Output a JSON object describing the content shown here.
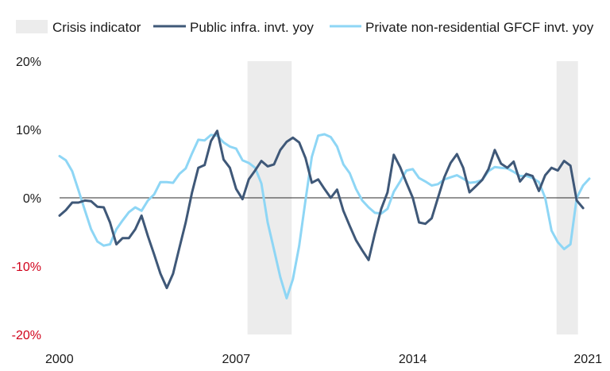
{
  "chart_data": {
    "type": "line",
    "legend_position": "top",
    "legend": [
      {
        "name": "Crisis indicator",
        "kind": "band",
        "color": "#ececec"
      },
      {
        "name": "Public infra. invt. yoy",
        "kind": "line",
        "color": "#3f5878"
      },
      {
        "name": "Private non-residential GFCF invt. yoy",
        "kind": "line",
        "color": "#8ed6f5"
      }
    ],
    "xlim": [
      2000,
      2021
    ],
    "ylim": [
      -20,
      20
    ],
    "x_ticks": [
      {
        "value": 2000,
        "label": "2000"
      },
      {
        "value": 2007,
        "label": "2007"
      },
      {
        "value": 2014,
        "label": "2014"
      },
      {
        "value": 2021,
        "label": "2021"
      }
    ],
    "y_ticks": [
      {
        "value": 20,
        "label": "20%",
        "color": "#1a1a1a"
      },
      {
        "value": 10,
        "label": "10%",
        "color": "#1a1a1a"
      },
      {
        "value": 0,
        "label": "0%",
        "color": "#1a1a1a"
      },
      {
        "value": -10,
        "label": "-10%",
        "color": "#d0021b"
      },
      {
        "value": -20,
        "label": "-20%",
        "color": "#d0021b"
      }
    ],
    "zero_line": true,
    "grid": false,
    "crisis_bands": [
      {
        "start": 2007.45,
        "end": 2009.2
      },
      {
        "start": 2019.7,
        "end": 2020.55
      }
    ],
    "series": [
      {
        "name": "Public infra. invt. yoy",
        "color": "#3f5878",
        "points": [
          [
            2000.0,
            -2.6
          ],
          [
            2000.25,
            -1.8
          ],
          [
            2000.5,
            -0.7
          ],
          [
            2000.75,
            -0.7
          ],
          [
            2001.0,
            -0.4
          ],
          [
            2001.25,
            -0.5
          ],
          [
            2001.5,
            -1.3
          ],
          [
            2001.75,
            -1.4
          ],
          [
            2002.0,
            -3.6
          ],
          [
            2002.25,
            -6.8
          ],
          [
            2002.5,
            -5.9
          ],
          [
            2002.75,
            -5.9
          ],
          [
            2003.0,
            -4.6
          ],
          [
            2003.25,
            -2.6
          ],
          [
            2003.5,
            -5.6
          ],
          [
            2003.75,
            -8.3
          ],
          [
            2004.0,
            -11.1
          ],
          [
            2004.25,
            -13.2
          ],
          [
            2004.5,
            -11.1
          ],
          [
            2004.75,
            -7.3
          ],
          [
            2005.0,
            -3.6
          ],
          [
            2005.25,
            0.8
          ],
          [
            2005.5,
            4.4
          ],
          [
            2005.75,
            4.8
          ],
          [
            2006.0,
            8.3
          ],
          [
            2006.25,
            9.8
          ],
          [
            2006.5,
            5.6
          ],
          [
            2006.75,
            4.4
          ],
          [
            2007.0,
            1.3
          ],
          [
            2007.25,
            -0.2
          ],
          [
            2007.5,
            2.7
          ],
          [
            2007.75,
            4.0
          ],
          [
            2008.0,
            5.4
          ],
          [
            2008.25,
            4.6
          ],
          [
            2008.5,
            4.9
          ],
          [
            2008.75,
            7.0
          ],
          [
            2009.0,
            8.2
          ],
          [
            2009.25,
            8.8
          ],
          [
            2009.5,
            8.1
          ],
          [
            2009.75,
            5.8
          ],
          [
            2010.0,
            2.2
          ],
          [
            2010.25,
            2.7
          ],
          [
            2010.5,
            1.3
          ],
          [
            2010.75,
            0.0
          ],
          [
            2011.0,
            1.2
          ],
          [
            2011.25,
            -1.9
          ],
          [
            2011.5,
            -4.1
          ],
          [
            2011.75,
            -6.2
          ],
          [
            2012.0,
            -7.7
          ],
          [
            2012.25,
            -9.1
          ],
          [
            2012.5,
            -5.2
          ],
          [
            2012.75,
            -1.6
          ],
          [
            2013.0,
            0.8
          ],
          [
            2013.25,
            6.3
          ],
          [
            2013.5,
            4.5
          ],
          [
            2013.75,
            2.2
          ],
          [
            2014.0,
            0.0
          ],
          [
            2014.25,
            -3.6
          ],
          [
            2014.5,
            -3.8
          ],
          [
            2014.75,
            -3.0
          ],
          [
            2015.0,
            0.0
          ],
          [
            2015.25,
            3.0
          ],
          [
            2015.5,
            5.1
          ],
          [
            2015.75,
            6.4
          ],
          [
            2016.0,
            4.4
          ],
          [
            2016.25,
            0.8
          ],
          [
            2016.5,
            1.7
          ],
          [
            2016.75,
            2.6
          ],
          [
            2017.0,
            4.2
          ],
          [
            2017.25,
            7.0
          ],
          [
            2017.5,
            5.0
          ],
          [
            2017.75,
            4.4
          ],
          [
            2018.0,
            5.3
          ],
          [
            2018.25,
            2.4
          ],
          [
            2018.5,
            3.5
          ],
          [
            2018.75,
            3.2
          ],
          [
            2019.0,
            1.0
          ],
          [
            2019.25,
            3.3
          ],
          [
            2019.5,
            4.4
          ],
          [
            2019.75,
            4.0
          ],
          [
            2020.0,
            5.4
          ],
          [
            2020.25,
            4.7
          ],
          [
            2020.5,
            -0.4
          ],
          [
            2020.75,
            -1.5
          ]
        ]
      },
      {
        "name": "Private non-residential GFCF invt. yoy",
        "color": "#8ed6f5",
        "points": [
          [
            2000.0,
            6.1
          ],
          [
            2000.25,
            5.5
          ],
          [
            2000.5,
            3.9
          ],
          [
            2000.75,
            1.1
          ],
          [
            2001.0,
            -1.8
          ],
          [
            2001.25,
            -4.6
          ],
          [
            2001.5,
            -6.4
          ],
          [
            2001.75,
            -7.0
          ],
          [
            2002.0,
            -6.8
          ],
          [
            2002.25,
            -4.6
          ],
          [
            2002.5,
            -3.3
          ],
          [
            2002.75,
            -2.1
          ],
          [
            2003.0,
            -1.4
          ],
          [
            2003.25,
            -1.9
          ],
          [
            2003.5,
            -0.4
          ],
          [
            2003.75,
            0.5
          ],
          [
            2004.0,
            2.3
          ],
          [
            2004.25,
            2.3
          ],
          [
            2004.5,
            2.2
          ],
          [
            2004.75,
            3.5
          ],
          [
            2005.0,
            4.3
          ],
          [
            2005.25,
            6.5
          ],
          [
            2005.5,
            8.5
          ],
          [
            2005.75,
            8.4
          ],
          [
            2006.0,
            9.2
          ],
          [
            2006.25,
            9.1
          ],
          [
            2006.5,
            8.1
          ],
          [
            2006.75,
            7.5
          ],
          [
            2007.0,
            7.2
          ],
          [
            2007.25,
            5.5
          ],
          [
            2007.5,
            5.1
          ],
          [
            2007.75,
            4.4
          ],
          [
            2008.0,
            2.1
          ],
          [
            2008.25,
            -3.6
          ],
          [
            2008.5,
            -7.6
          ],
          [
            2008.75,
            -11.6
          ],
          [
            2009.0,
            -14.7
          ],
          [
            2009.25,
            -11.9
          ],
          [
            2009.5,
            -7.0
          ],
          [
            2009.75,
            -0.3
          ],
          [
            2010.0,
            6.0
          ],
          [
            2010.25,
            9.1
          ],
          [
            2010.5,
            9.3
          ],
          [
            2010.75,
            8.9
          ],
          [
            2011.0,
            7.5
          ],
          [
            2011.25,
            4.9
          ],
          [
            2011.5,
            3.6
          ],
          [
            2011.75,
            1.3
          ],
          [
            2012.0,
            -0.4
          ],
          [
            2012.25,
            -1.4
          ],
          [
            2012.5,
            -2.2
          ],
          [
            2012.75,
            -2.3
          ],
          [
            2013.0,
            -1.6
          ],
          [
            2013.25,
            0.9
          ],
          [
            2013.5,
            2.4
          ],
          [
            2013.75,
            4.0
          ],
          [
            2014.0,
            4.2
          ],
          [
            2014.25,
            2.9
          ],
          [
            2014.5,
            2.4
          ],
          [
            2014.75,
            1.8
          ],
          [
            2015.0,
            2.0
          ],
          [
            2015.25,
            2.7
          ],
          [
            2015.5,
            3.0
          ],
          [
            2015.75,
            3.3
          ],
          [
            2016.0,
            2.8
          ],
          [
            2016.25,
            2.2
          ],
          [
            2016.5,
            2.3
          ],
          [
            2016.75,
            2.6
          ],
          [
            2017.0,
            3.9
          ],
          [
            2017.25,
            4.5
          ],
          [
            2017.5,
            4.4
          ],
          [
            2017.75,
            4.3
          ],
          [
            2018.0,
            3.8
          ],
          [
            2018.25,
            3.2
          ],
          [
            2018.5,
            3.2
          ],
          [
            2018.75,
            2.9
          ],
          [
            2019.0,
            2.3
          ],
          [
            2019.25,
            0.0
          ],
          [
            2019.5,
            -4.8
          ],
          [
            2019.75,
            -6.5
          ],
          [
            2020.0,
            -7.5
          ],
          [
            2020.25,
            -6.8
          ],
          [
            2020.5,
            0.0
          ],
          [
            2020.75,
            1.8
          ],
          [
            2021.0,
            2.8
          ]
        ]
      }
    ]
  }
}
